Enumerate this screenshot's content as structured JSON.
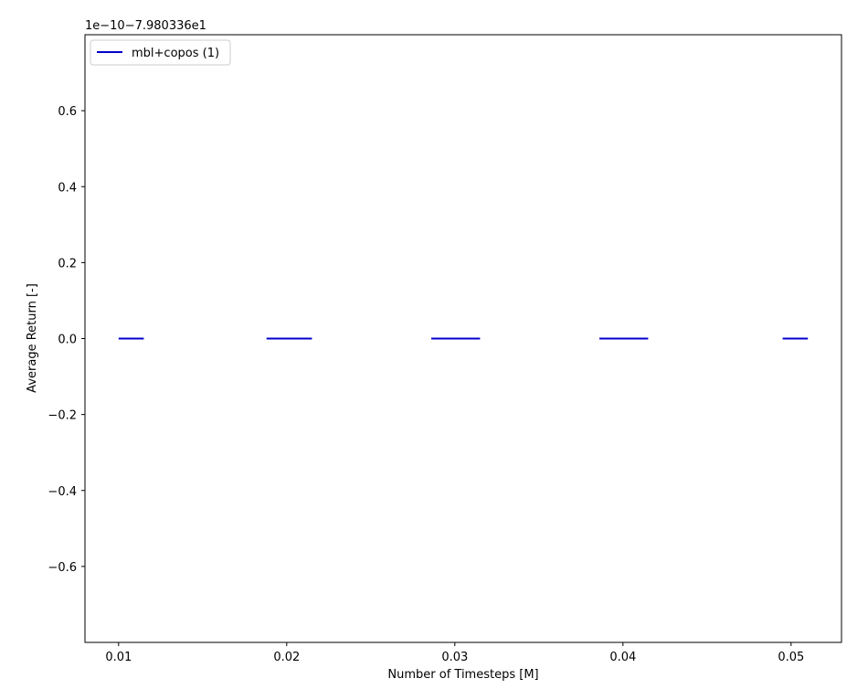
{
  "chart_data": {
    "type": "line",
    "title": "",
    "xlabel": "Number of Timesteps [M]",
    "ylabel": "Average Return [-]",
    "y_offset_label": "1e−10−7.980336e1",
    "xlim": [
      0.008,
      0.053
    ],
    "ylim": [
      -0.8,
      0.8
    ],
    "x_ticks": [
      0.01,
      0.02,
      0.03,
      0.04,
      0.05
    ],
    "x_tick_labels": [
      "0.01",
      "0.02",
      "0.03",
      "0.04",
      "0.05"
    ],
    "y_ticks": [
      -0.6,
      -0.4,
      -0.2,
      0.0,
      0.2,
      0.4,
      0.6
    ],
    "y_tick_labels": [
      "−0.6",
      "−0.4",
      "−0.2",
      "0.0",
      "0.2",
      "0.4",
      "0.6"
    ],
    "grid": false,
    "legend": {
      "placement": "top-left",
      "entries": [
        "mbl+copos (1)"
      ]
    },
    "series": [
      {
        "name": "mbl+copos (1)",
        "color": "#0000cc",
        "segments": [
          [
            [
              0.01,
              0.0
            ],
            [
              0.0115,
              0.0
            ]
          ],
          [
            [
              0.0188,
              0.0
            ],
            [
              0.02,
              0.0
            ],
            [
              0.0215,
              0.0
            ]
          ],
          [
            [
              0.0286,
              0.0
            ],
            [
              0.03,
              0.0
            ],
            [
              0.0315,
              0.0
            ]
          ],
          [
            [
              0.0386,
              0.0
            ],
            [
              0.04,
              0.0
            ],
            [
              0.0415,
              0.0
            ]
          ],
          [
            [
              0.0495,
              0.0
            ],
            [
              0.051,
              0.0
            ]
          ]
        ]
      }
    ]
  }
}
